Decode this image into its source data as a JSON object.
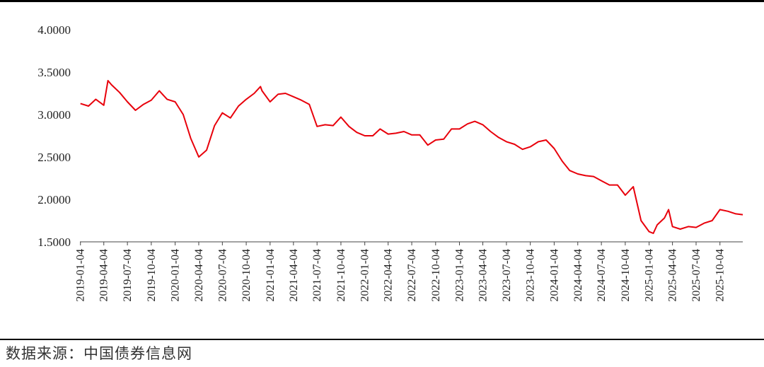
{
  "source_note": "数据来源：中国债券信息网",
  "chart_data": {
    "type": "line",
    "title": "",
    "xlabel": "",
    "ylabel": "",
    "ylim": [
      1.5,
      4.0
    ],
    "yticks": [
      "1.5000",
      "2.0000",
      "2.5000",
      "3.0000",
      "3.5000",
      "4.0000"
    ],
    "xlim": [
      "2019-01-02",
      "2025-12-31"
    ],
    "xticks": [
      "2019-01-04",
      "2019-04-04",
      "2019-07-04",
      "2019-10-04",
      "2020-01-04",
      "2020-04-04",
      "2020-07-04",
      "2020-10-04",
      "2021-01-04",
      "2021-04-04",
      "2021-07-04",
      "2021-10-04",
      "2022-01-04",
      "2022-04-04",
      "2022-07-04",
      "2022-10-04",
      "2023-01-04",
      "2023-04-04",
      "2023-07-04",
      "2023-10-04",
      "2024-01-04",
      "2024-04-04",
      "2024-07-04",
      "2024-10-04",
      "2025-01-04",
      "2025-04-04",
      "2025-07-04",
      "2025-10-04"
    ],
    "grid": false,
    "line_color": "#e8000b",
    "series": [
      {
        "x": [
          "2019-01-04",
          "2019-02-04",
          "2019-03-04",
          "2019-04-04",
          "2019-04-20",
          "2019-05-04",
          "2019-06-04",
          "2019-07-04",
          "2019-08-04",
          "2019-09-04",
          "2019-10-04",
          "2019-11-04",
          "2019-12-04",
          "2020-01-04",
          "2020-02-04",
          "2020-03-04",
          "2020-04-04",
          "2020-05-04",
          "2020-06-04",
          "2020-07-04",
          "2020-08-04",
          "2020-09-04",
          "2020-10-04",
          "2020-11-04",
          "2020-11-28",
          "2020-12-04",
          "2021-01-04",
          "2021-02-04",
          "2021-03-04",
          "2021-04-04",
          "2021-05-04",
          "2021-06-04",
          "2021-07-04",
          "2021-08-04",
          "2021-09-04",
          "2021-10-04",
          "2021-11-04",
          "2021-12-04",
          "2022-01-04",
          "2022-02-04",
          "2022-03-04",
          "2022-04-04",
          "2022-05-04",
          "2022-06-04",
          "2022-07-04",
          "2022-08-04",
          "2022-09-04",
          "2022-10-04",
          "2022-11-04",
          "2022-12-04",
          "2023-01-04",
          "2023-02-04",
          "2023-03-04",
          "2023-04-04",
          "2023-05-04",
          "2023-06-04",
          "2023-07-04",
          "2023-08-04",
          "2023-09-04",
          "2023-10-04",
          "2023-11-04",
          "2023-12-04",
          "2024-01-04",
          "2024-02-04",
          "2024-03-04",
          "2024-04-04",
          "2024-05-04",
          "2024-06-04",
          "2024-07-04",
          "2024-08-04",
          "2024-09-04",
          "2024-10-04",
          "2024-11-04",
          "2024-12-04",
          "2025-01-04",
          "2025-01-20",
          "2025-02-04",
          "2025-03-04",
          "2025-03-20",
          "2025-04-04",
          "2025-05-04",
          "2025-06-04",
          "2025-07-04",
          "2025-08-04",
          "2025-09-04",
          "2025-10-04",
          "2025-11-04",
          "2025-12-04",
          "2025-12-31"
        ],
        "y": [
          3.13,
          3.1,
          3.18,
          3.11,
          3.4,
          3.35,
          3.26,
          3.15,
          3.05,
          3.12,
          3.17,
          3.28,
          3.18,
          3.15,
          3.0,
          2.72,
          2.5,
          2.58,
          2.87,
          3.02,
          2.96,
          3.1,
          3.18,
          3.25,
          3.33,
          3.28,
          3.15,
          3.24,
          3.25,
          3.21,
          3.17,
          3.12,
          2.86,
          2.88,
          2.87,
          2.97,
          2.86,
          2.79,
          2.75,
          2.75,
          2.83,
          2.77,
          2.78,
          2.8,
          2.76,
          2.76,
          2.64,
          2.7,
          2.71,
          2.83,
          2.83,
          2.89,
          2.92,
          2.88,
          2.8,
          2.73,
          2.68,
          2.65,
          2.59,
          2.62,
          2.68,
          2.7,
          2.6,
          2.45,
          2.34,
          2.3,
          2.28,
          2.27,
          2.22,
          2.17,
          2.17,
          2.05,
          2.15,
          1.75,
          1.62,
          1.6,
          1.7,
          1.78,
          1.88,
          1.68,
          1.65,
          1.68,
          1.67,
          1.72,
          1.75,
          1.88,
          1.86,
          1.83,
          1.82
        ]
      }
    ]
  }
}
